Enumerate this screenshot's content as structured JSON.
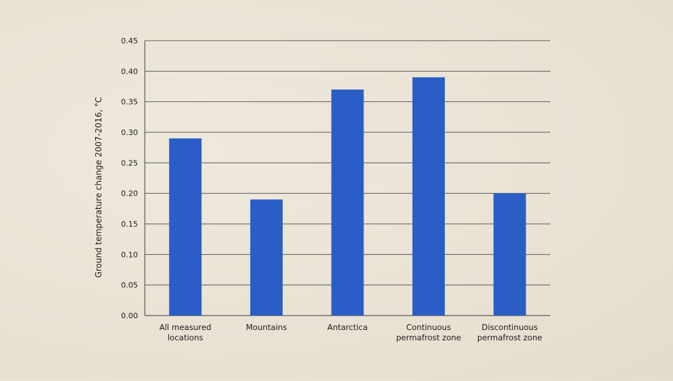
{
  "chart_data": {
    "type": "bar",
    "title": "",
    "xlabel": "",
    "ylabel": "Ground temperature change 2007-2016, °C",
    "ylim": [
      0,
      0.45
    ],
    "yticks": [
      "0.00",
      "0.05",
      "0.10",
      "0.15",
      "0.20",
      "0.25",
      "0.30",
      "0.35",
      "0.40",
      "0.45"
    ],
    "grid": true,
    "categories": [
      [
        "All measured",
        "locations"
      ],
      [
        "Mountains"
      ],
      [
        "Antarctica"
      ],
      [
        "Continuous",
        "permafrost zone"
      ],
      [
        "Discontinuous",
        "permafrost zone"
      ]
    ],
    "values": [
      0.29,
      0.19,
      0.37,
      0.39,
      0.2
    ],
    "bar_color": "#2a5ec6",
    "grid_color": "#5a5a5a"
  }
}
